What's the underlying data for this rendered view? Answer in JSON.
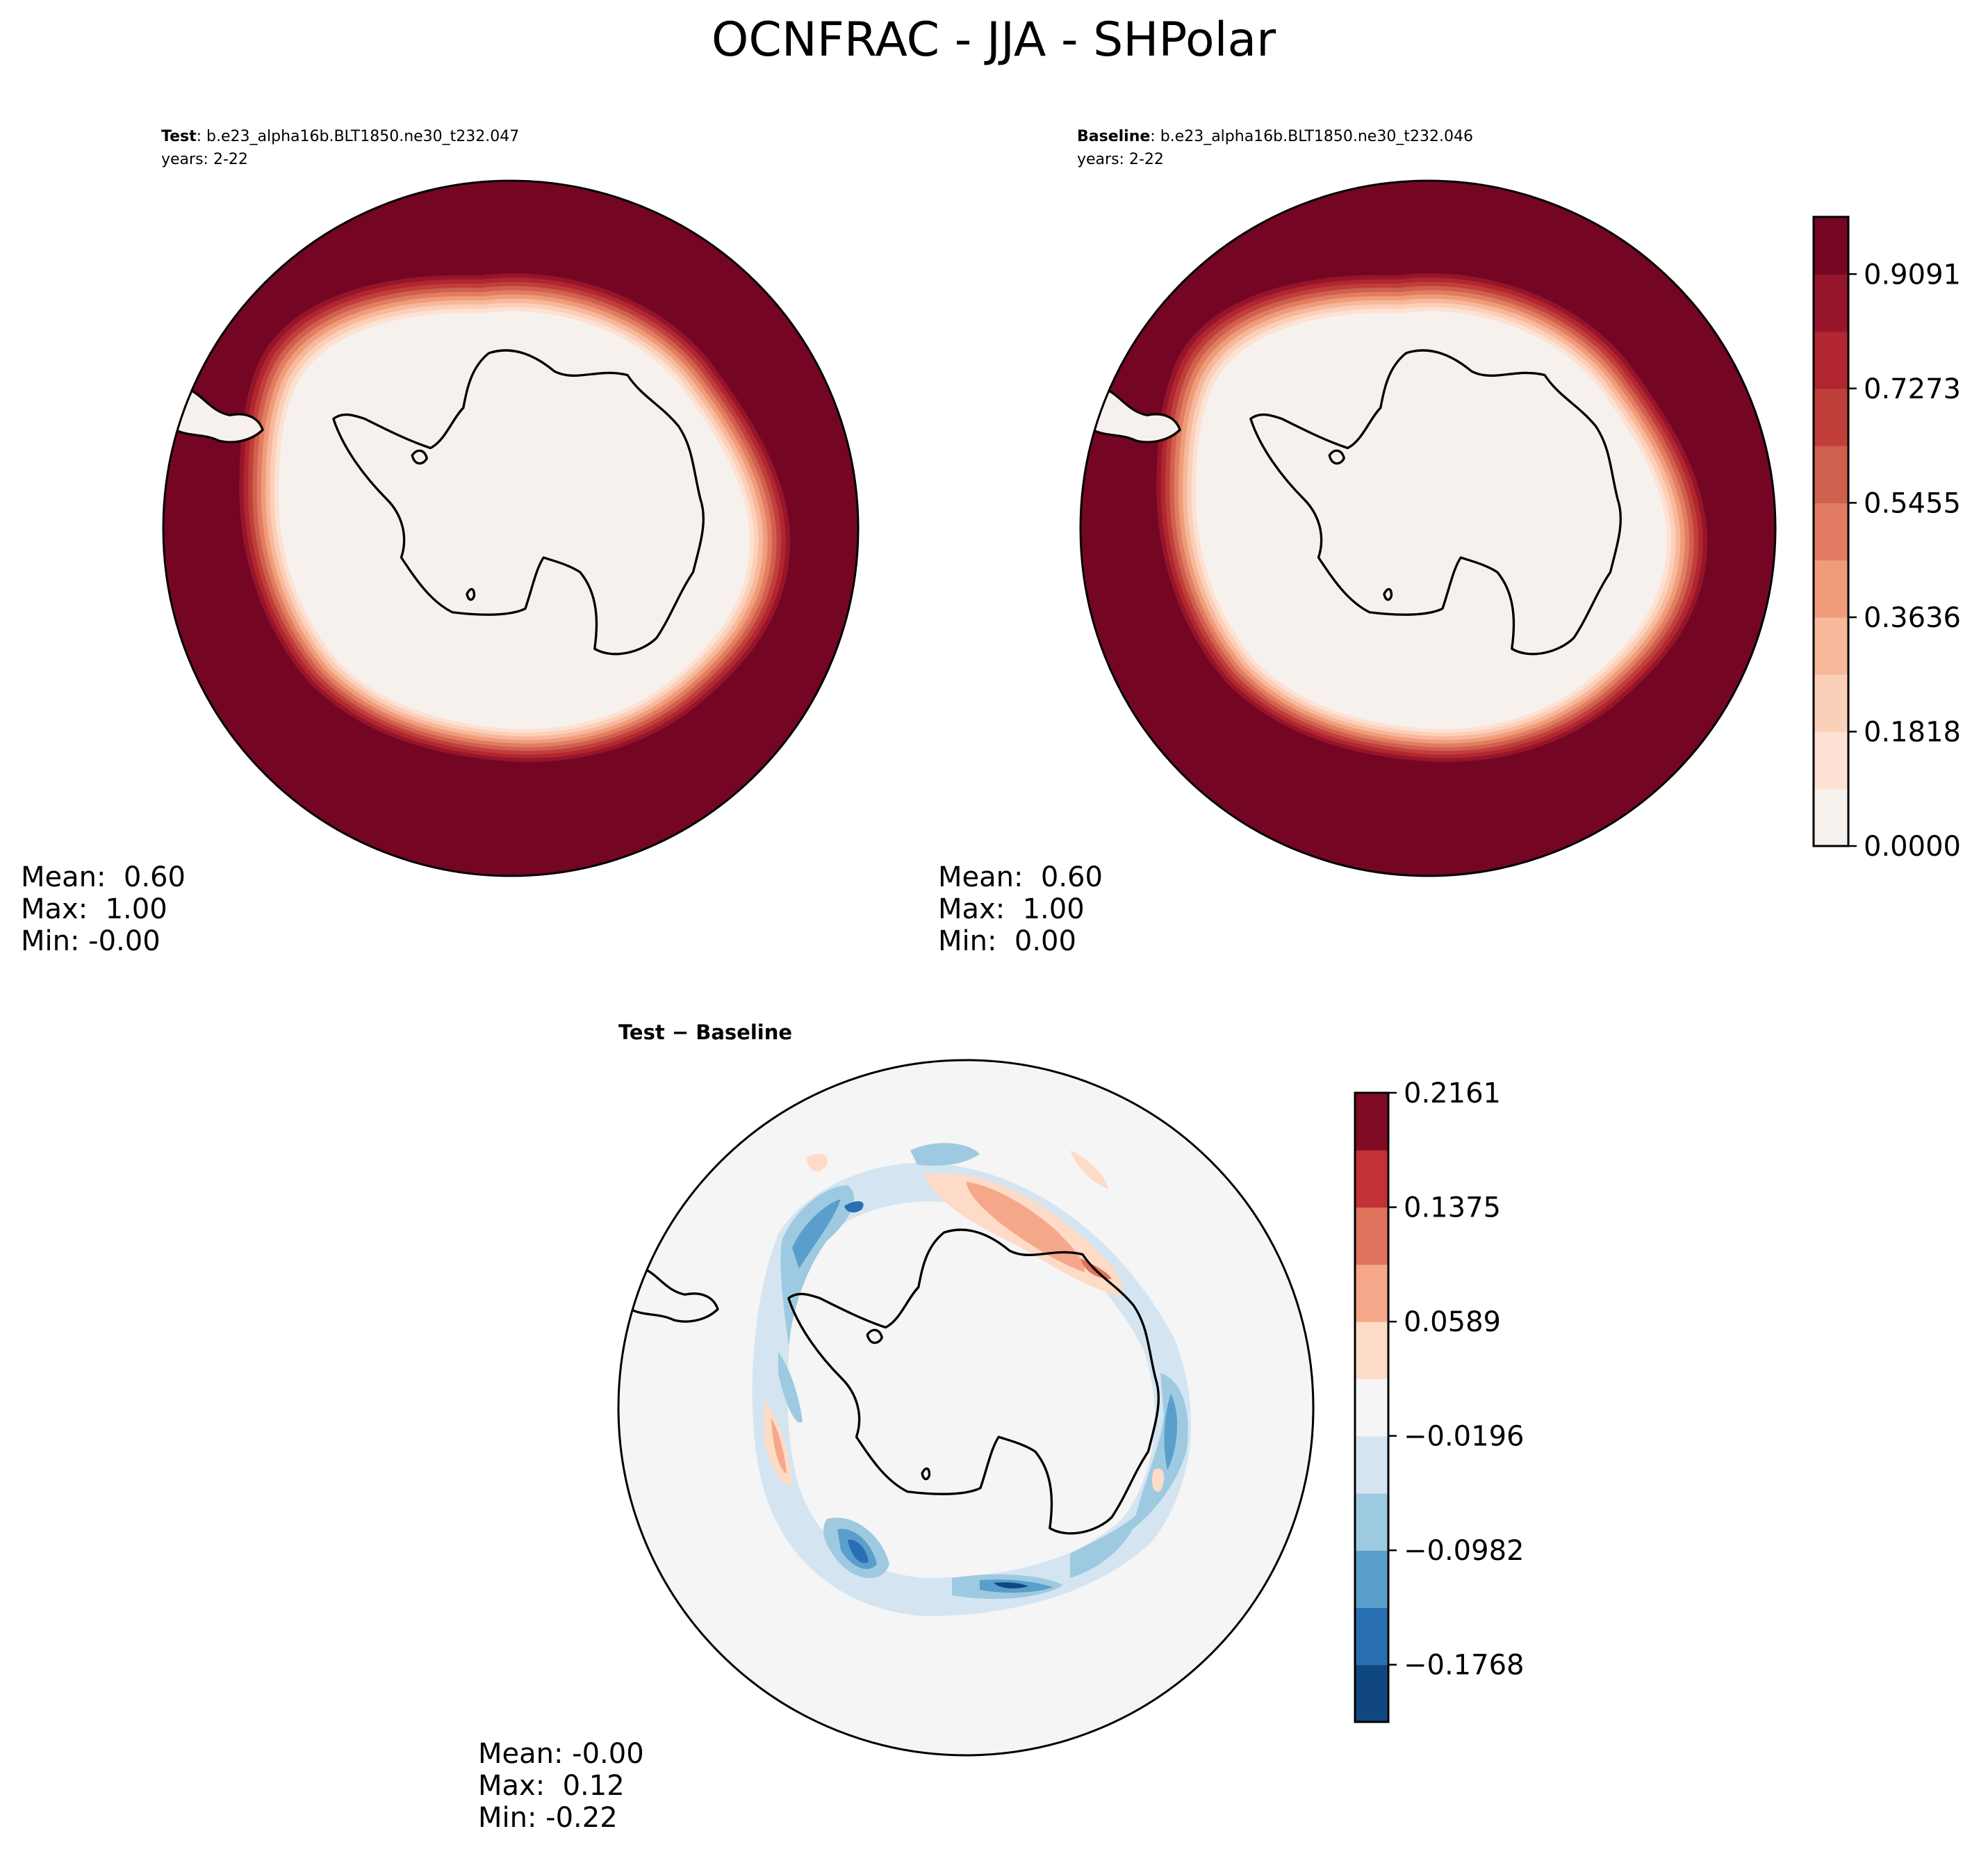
{
  "figure": {
    "title": "OCNFRAC - JJA - SHPolar"
  },
  "chart_data": [
    {
      "type": "heatmap",
      "projection": "south-polar-stereographic",
      "panel": "test",
      "subtitle_bold": "Test",
      "subtitle_rest": ": b.e23_alpha16b.BLT1850.ne30_t232.047",
      "years": "years: 2-22",
      "stats": {
        "mean": "Mean:  0.60",
        "max": "Max:  1.00",
        "min": "Min: -0.00"
      },
      "description_values": {
        "mean": 0.6,
        "max": 1.0,
        "min": -0.0
      },
      "colormap": "RdBu_r",
      "ice_edge_fraction": 0.41
    },
    {
      "type": "heatmap",
      "projection": "south-polar-stereographic",
      "panel": "baseline",
      "subtitle_bold": "Baseline",
      "subtitle_rest": ": b.e23_alpha16b.BLT1850.ne30_t232.046",
      "years": "years: 2-22",
      "stats": {
        "mean": "Mean:  0.60",
        "max": "Max:  1.00",
        "min": "Min:  0.00"
      },
      "description_values": {
        "mean": 0.6,
        "max": 1.0,
        "min": 0.0
      },
      "colormap": "RdBu_r",
      "ice_edge_fraction": 0.41
    },
    {
      "type": "heatmap",
      "projection": "south-polar-stereographic",
      "panel": "difference",
      "subtitle_bold": "Test − Baseline",
      "stats": {
        "mean": "Mean: -0.00",
        "max": "Max:  0.12",
        "min": "Min: -0.22"
      },
      "description_values": {
        "mean": -0.0,
        "max": 0.12,
        "min": -0.22
      },
      "colormap": "RdBu_r"
    }
  ],
  "colorbars": {
    "main": {
      "ticks": [
        "0.0000",
        "0.1818",
        "0.3636",
        "0.5455",
        "0.7273",
        "0.9091"
      ],
      "tick_values": [
        0.0,
        0.1818,
        0.3636,
        0.5455,
        0.7273,
        0.9091
      ],
      "range": [
        0.0,
        1.0
      ],
      "levels": 11,
      "colors": [
        "#f7f1ee",
        "#fde1d3",
        "#fbd0b9",
        "#f7b89c",
        "#f09c7b",
        "#e27c62",
        "#d0604e",
        "#c03f3a",
        "#b12630",
        "#96152a",
        "#740624"
      ]
    },
    "diff": {
      "ticks": [
        "0.2161",
        "0.1375",
        "0.0589",
        "−0.0196",
        "−0.0982",
        "−0.1768"
      ],
      "tick_values": [
        0.2161,
        0.1375,
        0.0589,
        -0.0196,
        -0.0982,
        -0.1768
      ],
      "range": [
        -0.2161,
        0.2161
      ],
      "levels": 11,
      "colors": [
        "#114781",
        "#2870b2",
        "#5a9fcb",
        "#9ecae1",
        "#d4e5f1",
        "#f5f5f5",
        "#fddbc7",
        "#f5a889",
        "#e0735b",
        "#c13136",
        "#7f0b24"
      ]
    }
  }
}
